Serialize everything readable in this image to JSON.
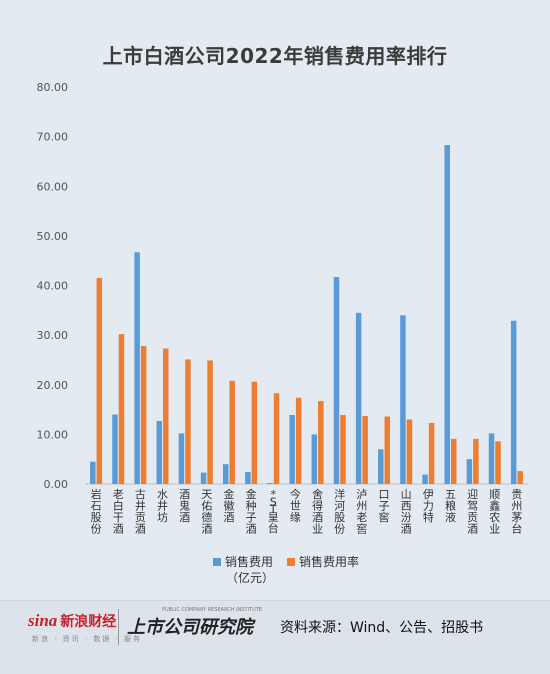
{
  "chart_data": {
    "type": "bar",
    "title": "上市白酒公司2022年销售费用率排行",
    "categories": [
      "岩石股份",
      "老白干酒",
      "古井贡酒",
      "水井坊",
      "酒鬼酒",
      "天佑德酒",
      "金徽酒",
      "金种子酒",
      "*ST皇台",
      "今世缘",
      "舍得酒业",
      "洋河股份",
      "泸州老窖",
      "口子窖",
      "山西汾酒",
      "伊力特",
      "五粮液",
      "迎驾贡酒",
      "顺鑫农业",
      "贵州茅台"
    ],
    "series": [
      {
        "name": "销售费用（亿元）",
        "color": "#5b9bd5",
        "values": [
          4.5,
          14.0,
          46.7,
          12.7,
          10.2,
          2.3,
          4.0,
          2.4,
          0.2,
          13.9,
          10.0,
          41.7,
          34.5,
          7.0,
          34.0,
          1.9,
          68.3,
          5.0,
          10.2,
          32.9
        ]
      },
      {
        "name": "销售费用率",
        "color": "#ed7d31",
        "values": [
          41.5,
          30.2,
          27.8,
          27.3,
          25.1,
          24.9,
          20.8,
          20.6,
          18.3,
          17.4,
          16.7,
          13.9,
          13.7,
          13.6,
          13.0,
          12.3,
          9.1,
          9.1,
          8.6,
          2.6
        ]
      }
    ],
    "yticks": [
      "0.00",
      "10.00",
      "20.00",
      "30.00",
      "40.00",
      "50.00",
      "60.00",
      "70.00",
      "80.00"
    ],
    "ylim": [
      0,
      80
    ],
    "grid": false,
    "legend_position": "bottom"
  },
  "legend": {
    "series1_line1": "销售费用",
    "series1_line2": "（亿元）",
    "series2": "销售费用率"
  },
  "footer": {
    "sina_brand": "sina",
    "sina_cn": "新浪财经",
    "sina_sub": "新浪 · 资讯 · 数据 · 服务",
    "institute_logo": "上市公司研究院",
    "institute_small": "PUBLIC COMPANY RESEARCH INSTITUTE",
    "source": "资料来源：Wind、公告、招股书"
  }
}
